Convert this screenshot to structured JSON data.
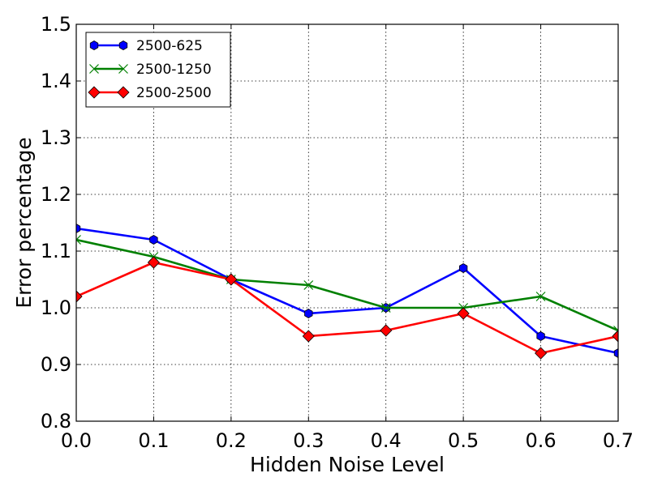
{
  "chart_data": {
    "type": "line",
    "title": "",
    "xlabel": "Hidden Noise Level",
    "ylabel": "Error percentage",
    "xlim": [
      0.0,
      0.7
    ],
    "ylim": [
      0.8,
      1.5
    ],
    "xticks": [
      "0.0",
      "0.1",
      "0.2",
      "0.3",
      "0.4",
      "0.5",
      "0.6",
      "0.7"
    ],
    "yticks": [
      "0.8",
      "0.9",
      "1.0",
      "1.1",
      "1.2",
      "1.3",
      "1.4",
      "1.5"
    ],
    "grid": true,
    "legend_position": "top-left",
    "x": [
      0.0,
      0.1,
      0.2,
      0.3,
      0.4,
      0.5,
      0.6,
      0.7
    ],
    "series": [
      {
        "name": "2500-625",
        "values": [
          1.14,
          1.12,
          1.05,
          0.99,
          1.0,
          1.07,
          0.95,
          0.92
        ],
        "color": "#0000ff",
        "marker": "hexagon"
      },
      {
        "name": "2500-1250",
        "values": [
          1.12,
          1.09,
          1.05,
          1.04,
          1.0,
          1.0,
          1.02,
          0.96
        ],
        "color": "#008000",
        "marker": "x"
      },
      {
        "name": "2500-2500",
        "values": [
          1.02,
          1.08,
          1.05,
          0.95,
          0.96,
          0.99,
          0.92,
          0.95
        ],
        "color": "#ff0000",
        "marker": "diamond"
      }
    ]
  }
}
